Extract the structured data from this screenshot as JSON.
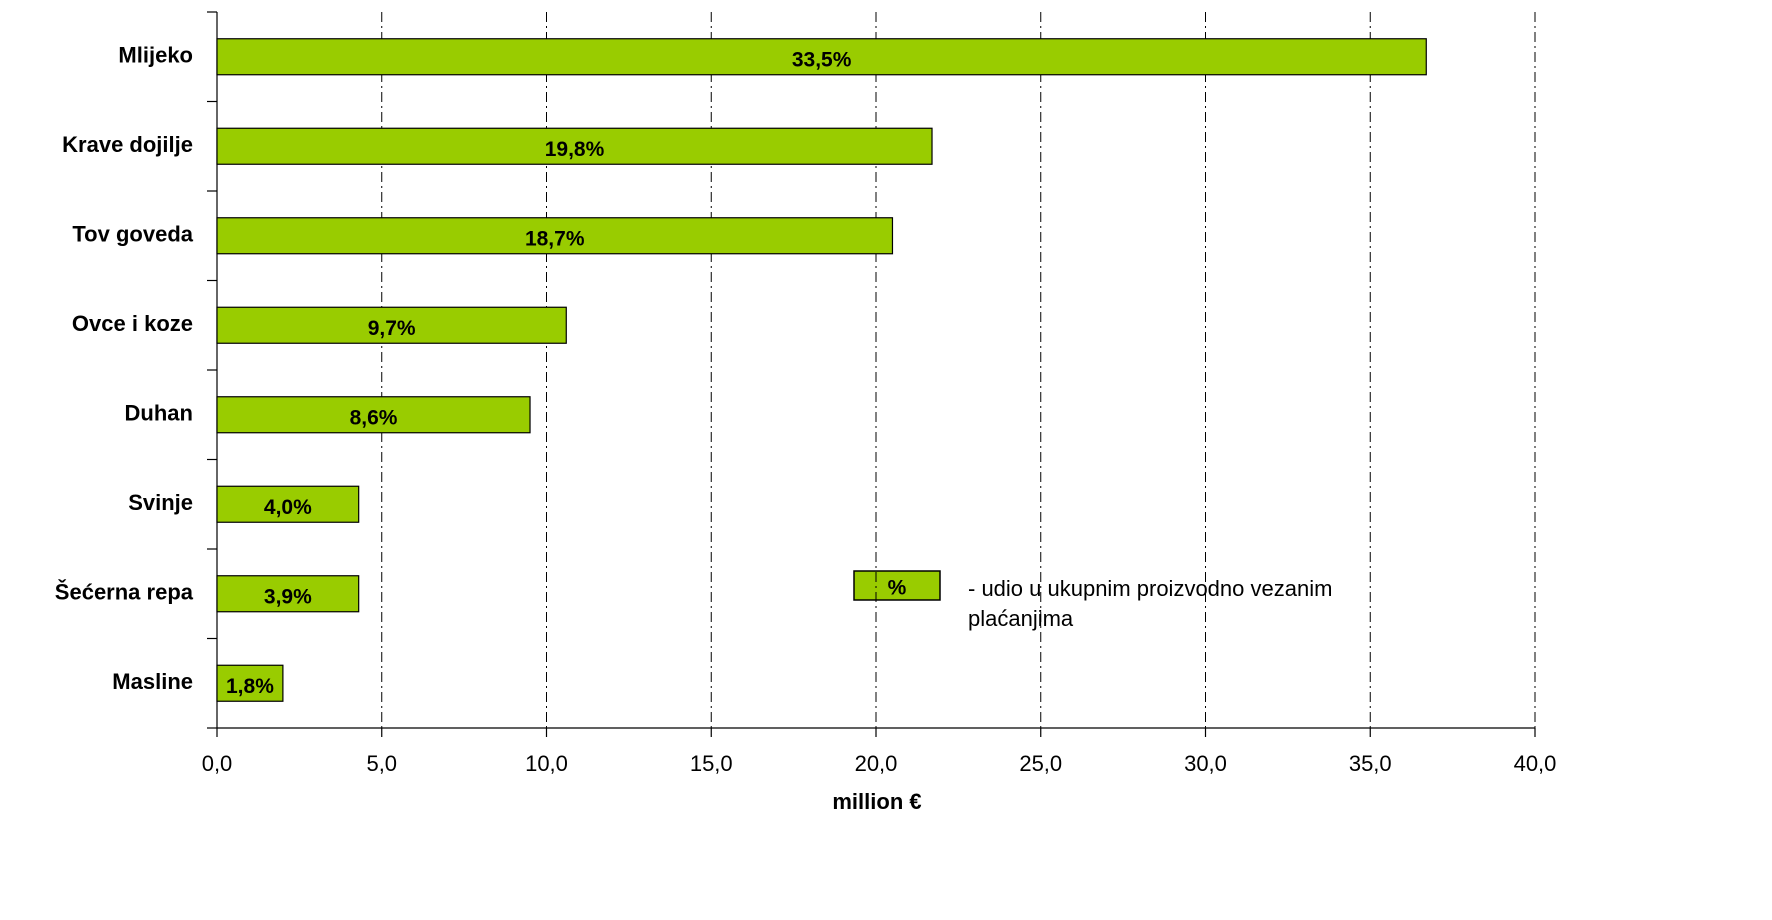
{
  "chart_data": {
    "type": "hbar",
    "categories": [
      "Mlijeko",
      "Krave dojilje",
      "Tov goveda",
      "Ovce i koze",
      "Duhan",
      "Svinje",
      "Šećerna repa",
      "Masline"
    ],
    "values": [
      36.7,
      21.7,
      20.5,
      10.6,
      9.5,
      4.3,
      4.3,
      2.0
    ],
    "color": "#99cc00",
    "shares": {
      "values": [
        33.5,
        19.8,
        18.7,
        9.7,
        8.6,
        4.0,
        3.9,
        1.8
      ],
      "value_labels": [
        "33,5%",
        "19,8%",
        "18,7%",
        "9,7%",
        "8,6%",
        "4,0%",
        "3,9%",
        "1,8%"
      ]
    },
    "x_label": "million €",
    "xlim": [
      0,
      40
    ],
    "xticks": [
      {
        "value": 0,
        "label": "0,0"
      },
      {
        "value": 5,
        "label": "5,0"
      },
      {
        "value": 10,
        "label": "10,0"
      },
      {
        "value": 15,
        "label": "15,0"
      },
      {
        "value": 20,
        "label": "20,0"
      },
      {
        "value": 25,
        "label": "25,0"
      },
      {
        "value": 30,
        "label": "30,0"
      },
      {
        "value": 35,
        "label": "35,0"
      },
      {
        "value": 40,
        "label": "40,0"
      }
    ],
    "grid": true,
    "legend": {
      "symbol": "%",
      "text": "- udio u ukupnim proizvodno vezanim plaćanjima"
    }
  }
}
